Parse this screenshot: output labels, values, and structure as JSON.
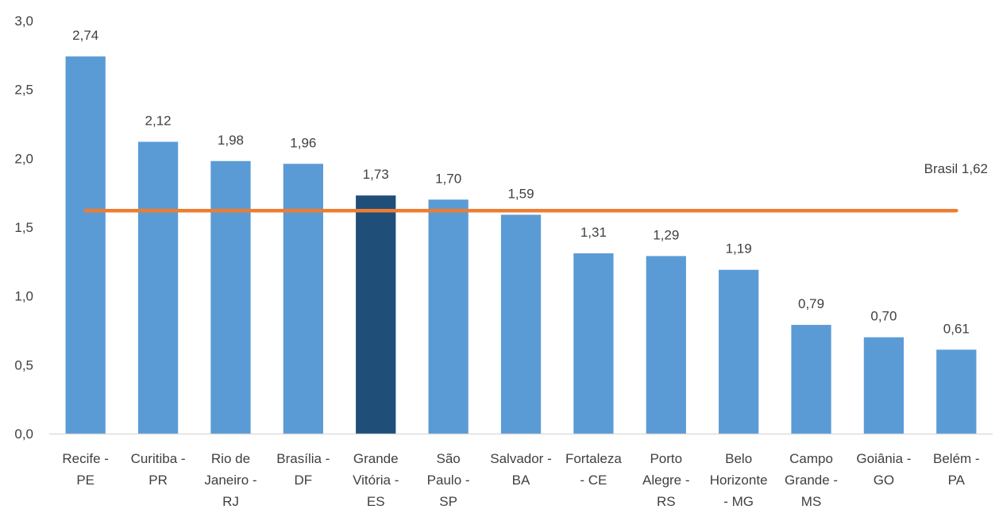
{
  "chart_data": {
    "type": "bar",
    "categories": [
      [
        "Recife -",
        "PE"
      ],
      [
        "Curitiba -",
        "PR"
      ],
      [
        "Rio de",
        "Janeiro -",
        "RJ"
      ],
      [
        "Brasília -",
        "DF"
      ],
      [
        "Grande",
        "Vitória -",
        "ES"
      ],
      [
        "São",
        "Paulo -",
        "SP"
      ],
      [
        "Salvador -",
        "BA"
      ],
      [
        "Fortaleza",
        "- CE"
      ],
      [
        "Porto",
        "Alegre -",
        "RS"
      ],
      [
        "Belo",
        "Horizonte",
        "- MG"
      ],
      [
        "Campo",
        "Grande -",
        "MS"
      ],
      [
        "Goiânia -",
        "GO"
      ],
      [
        "Belém -",
        "PA"
      ]
    ],
    "values": [
      2.74,
      2.12,
      1.98,
      1.96,
      1.73,
      1.7,
      1.59,
      1.31,
      1.29,
      1.19,
      0.79,
      0.7,
      0.61
    ],
    "data_labels": [
      "2,74",
      "2,12",
      "1,98",
      "1,96",
      "1,73",
      "1,70",
      "1,59",
      "1,31",
      "1,29",
      "1,19",
      "0,79",
      "0,70",
      "0,61"
    ],
    "highlight_index": 4,
    "ylim": [
      0,
      3.0
    ],
    "yticks": [
      0,
      0.5,
      1.0,
      1.5,
      2.0,
      2.5,
      3.0
    ],
    "ytick_labels": [
      "0,0",
      "0,5",
      "1,0",
      "1,5",
      "2,0",
      "2,5",
      "3,0"
    ],
    "reference_line": {
      "value": 1.62,
      "label": "Brasil 1,62"
    },
    "grid": false,
    "title": "",
    "xlabel": "",
    "ylabel": ""
  },
  "colors": {
    "bar": "#5b9bd5",
    "highlight_bar": "#1f4e79",
    "reference_line": "#ed7d31",
    "axis": "#d9d9d9",
    "text": "#404040"
  }
}
